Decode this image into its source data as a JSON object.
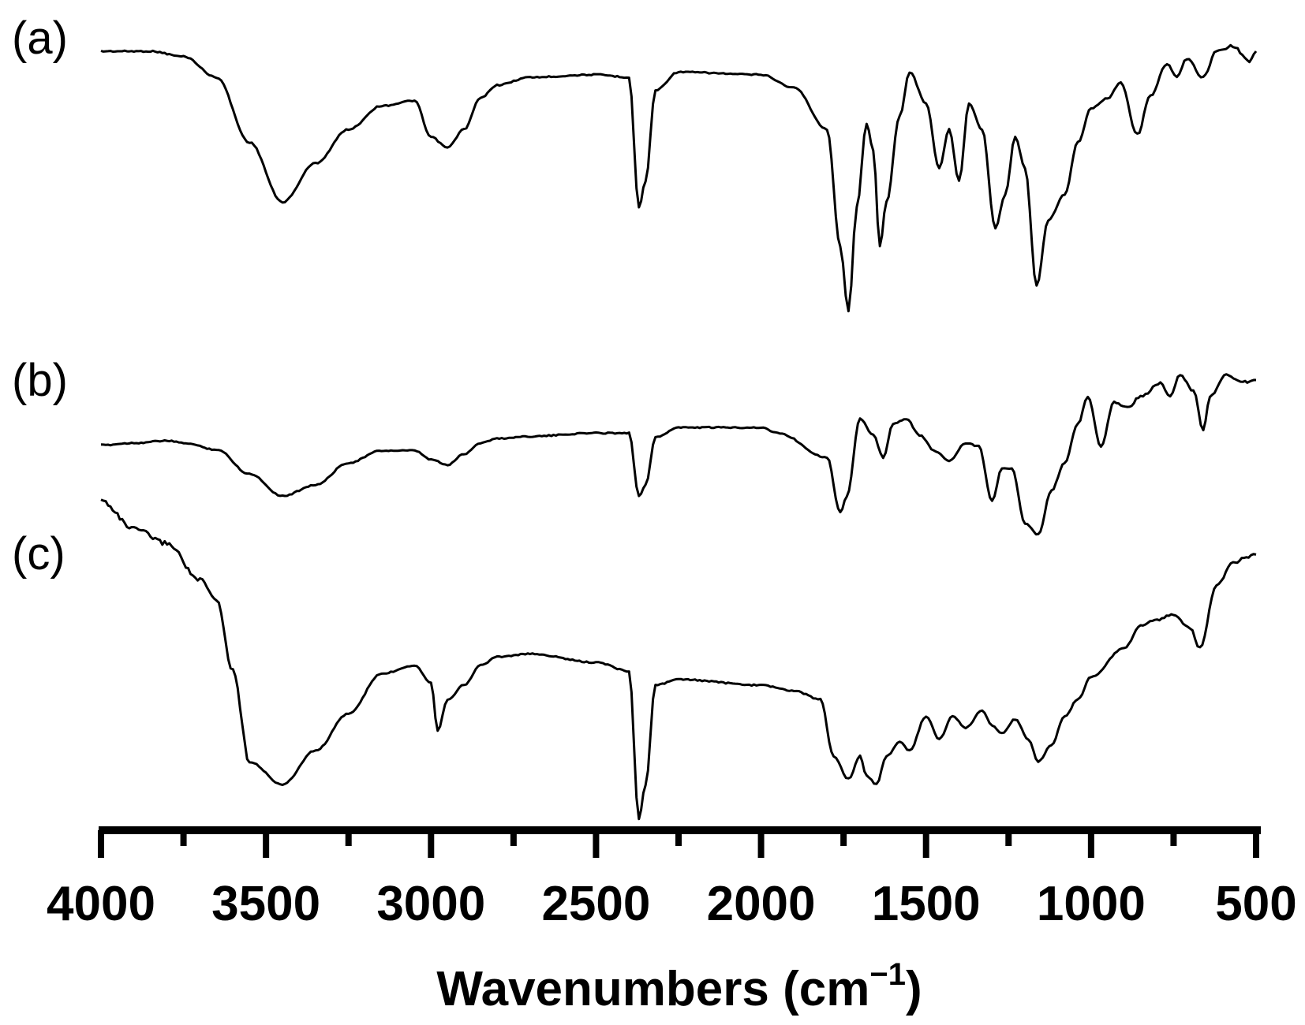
{
  "chart_data": {
    "type": "line",
    "xlabel_main": "Wavenumbers (cm",
    "xlabel_sup": "−1",
    "xlabel_end": ")",
    "xlim": [
      4000,
      500
    ],
    "x_reversed": true,
    "ticks": [
      "4000",
      "3500",
      "3000",
      "2500",
      "2000",
      "1500",
      "1000",
      "500"
    ],
    "tick_values": [
      4000,
      3500,
      3000,
      2500,
      2000,
      1500,
      1000,
      500
    ],
    "minor_tick_values": [
      3750,
      3250,
      2750,
      2250,
      1750,
      1250,
      750
    ],
    "ylabel": "",
    "grid": false,
    "legend": "none",
    "series": [
      {
        "name": "(a)",
        "points": [
          [
            4000,
            0.0
          ],
          [
            3850,
            0.0
          ],
          [
            3750,
            0.02
          ],
          [
            3650,
            0.1
          ],
          [
            3550,
            0.35
          ],
          [
            3450,
            0.58
          ],
          [
            3350,
            0.43
          ],
          [
            3250,
            0.3
          ],
          [
            3150,
            0.21
          ],
          [
            3050,
            0.19
          ],
          [
            3000,
            0.33
          ],
          [
            2950,
            0.37
          ],
          [
            2900,
            0.3
          ],
          [
            2850,
            0.18
          ],
          [
            2800,
            0.13
          ],
          [
            2700,
            0.1
          ],
          [
            2500,
            0.09
          ],
          [
            2400,
            0.1
          ],
          [
            2370,
            0.6
          ],
          [
            2350,
            0.5
          ],
          [
            2320,
            0.15
          ],
          [
            2250,
            0.08
          ],
          [
            2000,
            0.09
          ],
          [
            1900,
            0.14
          ],
          [
            1800,
            0.3
          ],
          [
            1760,
            0.75
          ],
          [
            1735,
            1.0
          ],
          [
            1710,
            0.6
          ],
          [
            1680,
            0.28
          ],
          [
            1660,
            0.38
          ],
          [
            1640,
            0.75
          ],
          [
            1620,
            0.58
          ],
          [
            1580,
            0.25
          ],
          [
            1550,
            0.08
          ],
          [
            1500,
            0.2
          ],
          [
            1460,
            0.45
          ],
          [
            1430,
            0.3
          ],
          [
            1400,
            0.5
          ],
          [
            1370,
            0.2
          ],
          [
            1330,
            0.3
          ],
          [
            1290,
            0.68
          ],
          [
            1260,
            0.55
          ],
          [
            1230,
            0.33
          ],
          [
            1200,
            0.45
          ],
          [
            1165,
            0.9
          ],
          [
            1130,
            0.65
          ],
          [
            1080,
            0.55
          ],
          [
            1040,
            0.35
          ],
          [
            1000,
            0.22
          ],
          [
            950,
            0.18
          ],
          [
            910,
            0.12
          ],
          [
            860,
            0.32
          ],
          [
            820,
            0.17
          ],
          [
            770,
            0.05
          ],
          [
            740,
            0.1
          ],
          [
            710,
            0.03
          ],
          [
            660,
            0.1
          ],
          [
            620,
            0.0
          ],
          [
            570,
            -0.02
          ],
          [
            520,
            0.04
          ],
          [
            500,
            0.0
          ]
        ]
      },
      {
        "name": "(b)",
        "points": [
          [
            4000,
            0.14
          ],
          [
            3900,
            0.12
          ],
          [
            3800,
            0.1
          ],
          [
            3750,
            0.12
          ],
          [
            3650,
            0.18
          ],
          [
            3550,
            0.4
          ],
          [
            3450,
            0.6
          ],
          [
            3350,
            0.5
          ],
          [
            3250,
            0.3
          ],
          [
            3150,
            0.19
          ],
          [
            3050,
            0.19
          ],
          [
            3000,
            0.27
          ],
          [
            2950,
            0.32
          ],
          [
            2900,
            0.22
          ],
          [
            2850,
            0.12
          ],
          [
            2800,
            0.08
          ],
          [
            2700,
            0.06
          ],
          [
            2500,
            0.03
          ],
          [
            2400,
            0.03
          ],
          [
            2370,
            0.6
          ],
          [
            2350,
            0.5
          ],
          [
            2320,
            0.07
          ],
          [
            2250,
            -0.02
          ],
          [
            2000,
            -0.02
          ],
          [
            1950,
            0.03
          ],
          [
            1800,
            0.25
          ],
          [
            1760,
            0.75
          ],
          [
            1740,
            0.6
          ],
          [
            1700,
            -0.1
          ],
          [
            1660,
            0.05
          ],
          [
            1630,
            0.25
          ],
          [
            1600,
            -0.05
          ],
          [
            1560,
            -0.1
          ],
          [
            1520,
            0.05
          ],
          [
            1470,
            0.2
          ],
          [
            1430,
            0.28
          ],
          [
            1380,
            0.12
          ],
          [
            1340,
            0.15
          ],
          [
            1300,
            0.65
          ],
          [
            1270,
            0.35
          ],
          [
            1240,
            0.35
          ],
          [
            1200,
            0.85
          ],
          [
            1160,
            0.95
          ],
          [
            1120,
            0.55
          ],
          [
            1080,
            0.3
          ],
          [
            1040,
            -0.05
          ],
          [
            1010,
            -0.3
          ],
          [
            970,
            0.15
          ],
          [
            930,
            -0.25
          ],
          [
            890,
            -0.2
          ],
          [
            850,
            -0.3
          ],
          [
            790,
            -0.42
          ],
          [
            760,
            -0.3
          ],
          [
            730,
            -0.5
          ],
          [
            690,
            -0.35
          ],
          [
            660,
            0.0
          ],
          [
            640,
            -0.3
          ],
          [
            590,
            -0.5
          ],
          [
            540,
            -0.43
          ],
          [
            500,
            -0.45
          ]
        ]
      },
      {
        "name": "(c)",
        "points": [
          [
            4000,
            0.0
          ],
          [
            3900,
            0.1
          ],
          [
            3800,
            0.15
          ],
          [
            3700,
            0.28
          ],
          [
            3650,
            0.35
          ],
          [
            3600,
            0.6
          ],
          [
            3550,
            0.92
          ],
          [
            3450,
            1.0
          ],
          [
            3350,
            0.88
          ],
          [
            3250,
            0.75
          ],
          [
            3150,
            0.61
          ],
          [
            3050,
            0.58
          ],
          [
            3000,
            0.64
          ],
          [
            2980,
            0.81
          ],
          [
            2950,
            0.7
          ],
          [
            2900,
            0.65
          ],
          [
            2850,
            0.58
          ],
          [
            2800,
            0.55
          ],
          [
            2700,
            0.54
          ],
          [
            2500,
            0.57
          ],
          [
            2400,
            0.6
          ],
          [
            2370,
            1.12
          ],
          [
            2350,
            1.0
          ],
          [
            2320,
            0.65
          ],
          [
            2250,
            0.63
          ],
          [
            2000,
            0.65
          ],
          [
            1900,
            0.67
          ],
          [
            1820,
            0.7
          ],
          [
            1780,
            0.9
          ],
          [
            1735,
            0.98
          ],
          [
            1700,
            0.9
          ],
          [
            1680,
            0.97
          ],
          [
            1650,
            1.0
          ],
          [
            1620,
            0.9
          ],
          [
            1580,
            0.85
          ],
          [
            1550,
            0.88
          ],
          [
            1500,
            0.76
          ],
          [
            1460,
            0.84
          ],
          [
            1420,
            0.76
          ],
          [
            1380,
            0.8
          ],
          [
            1330,
            0.74
          ],
          [
            1300,
            0.79
          ],
          [
            1270,
            0.82
          ],
          [
            1230,
            0.77
          ],
          [
            1190,
            0.84
          ],
          [
            1160,
            0.92
          ],
          [
            1120,
            0.86
          ],
          [
            1080,
            0.76
          ],
          [
            1040,
            0.7
          ],
          [
            1000,
            0.62
          ],
          [
            900,
            0.52
          ],
          [
            850,
            0.44
          ],
          [
            800,
            0.42
          ],
          [
            750,
            0.4
          ],
          [
            700,
            0.45
          ],
          [
            670,
            0.52
          ],
          [
            620,
            0.3
          ],
          [
            570,
            0.22
          ],
          [
            530,
            0.2
          ],
          [
            500,
            0.19
          ]
        ]
      }
    ]
  }
}
